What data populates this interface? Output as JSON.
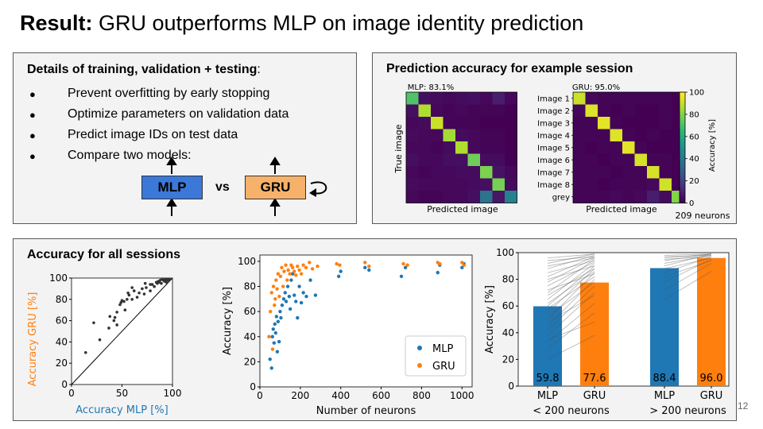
{
  "slide": {
    "title_bold": "Result:",
    "title_rest": " GRU outperforms MLP on image identity prediction",
    "page_number": "12"
  },
  "training": {
    "heading_bold": "Details of training, validation + testing",
    "heading_tail": ":",
    "bullet_glyph": "●",
    "bullets": [
      "Prevent overfitting by early stopping",
      "Optimize parameters on validation data",
      "Predict image IDs on test data",
      "Compare two models:"
    ],
    "model_a": "MLP",
    "vs": "vs",
    "model_b": "GRU"
  },
  "prediction": {
    "heading": "Prediction accuracy for example session",
    "neurons_note": "209 neurons",
    "colorbar_label": "Accuracy [%]",
    "colorbar_ticks": [
      "0",
      "20",
      "40",
      "60",
      "80",
      "100"
    ],
    "y_label": "True image",
    "x_label": "Predicted image",
    "row_labels": [
      "Image 1",
      "Image 2",
      "Image 3",
      "Image 4",
      "Image 5",
      "Image 6",
      "Image 7",
      "Image 8",
      "grey"
    ],
    "colors": {
      "low": "#440154",
      "mid": "#21918c",
      "high": "#fde725"
    }
  },
  "all_sessions": {
    "heading": "Accuracy for all sessions"
  },
  "chart_data": [
    {
      "type": "heatmap",
      "title": "MLP: 83.1%",
      "xlabel": "Predicted image",
      "ylabel": "True image",
      "rows": [
        "Image 1",
        "Image 2",
        "Image 3",
        "Image 4",
        "Image 5",
        "Image 6",
        "Image 7",
        "Image 8",
        "grey"
      ],
      "values": [
        [
          72,
          4,
          3,
          2,
          3,
          4,
          2,
          8,
          2
        ],
        [
          4,
          88,
          2,
          1,
          2,
          1,
          1,
          1,
          0
        ],
        [
          2,
          3,
          92,
          1,
          1,
          1,
          0,
          0,
          0
        ],
        [
          3,
          2,
          2,
          86,
          3,
          2,
          1,
          1,
          0
        ],
        [
          2,
          2,
          1,
          3,
          88,
          2,
          1,
          1,
          0
        ],
        [
          4,
          2,
          2,
          4,
          4,
          78,
          3,
          3,
          0
        ],
        [
          2,
          1,
          2,
          2,
          3,
          3,
          80,
          5,
          2
        ],
        [
          3,
          2,
          2,
          2,
          2,
          3,
          4,
          79,
          3
        ],
        [
          2,
          1,
          1,
          2,
          2,
          4,
          38,
          6,
          44
        ]
      ],
      "zlim": [
        0,
        100
      ]
    },
    {
      "type": "heatmap",
      "title": "GRU: 95.0%",
      "xlabel": "Predicted image",
      "rows": [
        "Image 1",
        "Image 2",
        "Image 3",
        "Image 4",
        "Image 5",
        "Image 6",
        "Image 7",
        "Image 8",
        "grey"
      ],
      "values": [
        [
          92,
          2,
          1,
          1,
          1,
          1,
          1,
          1,
          0
        ],
        [
          2,
          95,
          1,
          0,
          1,
          0,
          0,
          1,
          0
        ],
        [
          1,
          1,
          96,
          1,
          0,
          0,
          0,
          1,
          0
        ],
        [
          1,
          1,
          1,
          95,
          1,
          0,
          1,
          0,
          0
        ],
        [
          1,
          0,
          1,
          1,
          96,
          1,
          0,
          0,
          0
        ],
        [
          1,
          1,
          0,
          1,
          1,
          94,
          1,
          1,
          0
        ],
        [
          1,
          1,
          1,
          0,
          1,
          1,
          94,
          1,
          0
        ],
        [
          1,
          1,
          0,
          1,
          1,
          1,
          2,
          93,
          0
        ],
        [
          1,
          1,
          1,
          2,
          1,
          2,
          8,
          3,
          81
        ]
      ],
      "zlim": [
        0,
        100
      ]
    },
    {
      "type": "scatter",
      "xlabel": "Accuracy MLP [%]",
      "ylabel": "Accuracy GRU [%]",
      "xlim": [
        0,
        100
      ],
      "ylim": [
        0,
        100
      ],
      "xticks": [
        0,
        50,
        100
      ],
      "yticks": [
        0,
        20,
        40,
        60,
        80,
        100
      ],
      "colors": {
        "xlabel": "#1f77b4",
        "ylabel": "#ff7f0e",
        "points": "#333333"
      },
      "diagonal": true,
      "x": [
        14,
        22,
        28,
        37,
        38,
        42,
        43,
        45,
        45,
        48,
        49,
        50,
        52,
        53,
        55,
        56,
        57,
        60,
        60,
        62,
        65,
        67,
        70,
        72,
        73,
        74,
        78,
        78,
        80,
        82,
        84,
        85,
        86,
        87,
        88,
        89,
        90,
        91,
        92,
        93,
        94,
        94,
        95,
        96,
        97
      ],
      "y": [
        30,
        58,
        42,
        53,
        64,
        60,
        63,
        56,
        68,
        75,
        77,
        79,
        78,
        70,
        80,
        86,
        84,
        91,
        80,
        88,
        82,
        86,
        90,
        85,
        95,
        91,
        88,
        94,
        94,
        92,
        96,
        95,
        97,
        96,
        98,
        95,
        99,
        98,
        97,
        99,
        98,
        96,
        99,
        98,
        99
      ]
    },
    {
      "type": "scatter",
      "xlabel": "Number of neurons",
      "ylabel": "Accuracy [%]",
      "xlim": [
        0,
        1050
      ],
      "ylim": [
        0,
        105
      ],
      "xticks": [
        0,
        200,
        400,
        600,
        800,
        1000
      ],
      "yticks": [
        0,
        20,
        40,
        60,
        80,
        100
      ],
      "series": [
        {
          "name": "MLP",
          "color": "#1f77b4",
          "x": [
            50,
            58,
            62,
            66,
            70,
            74,
            78,
            82,
            86,
            90,
            95,
            100,
            104,
            110,
            118,
            125,
            130,
            138,
            145,
            150,
            155,
            162,
            170,
            178,
            186,
            195,
            205,
            215,
            230,
            250,
            275,
            390,
            400,
            520,
            540,
            700,
            720,
            880,
            890,
            1000,
            1010
          ],
          "y": [
            22,
            15,
            40,
            46,
            35,
            50,
            43,
            56,
            28,
            52,
            36,
            60,
            55,
            65,
            70,
            75,
            68,
            80,
            72,
            62,
            85,
            90,
            73,
            68,
            55,
            80,
            67,
            75,
            72,
            85,
            73,
            88,
            92,
            95,
            93,
            88,
            95,
            91,
            97,
            95,
            98
          ]
        },
        {
          "name": "GRU",
          "color": "#ff7f0e",
          "x": [
            45,
            52,
            58,
            63,
            67,
            72,
            76,
            80,
            85,
            90,
            96,
            102,
            108,
            115,
            120,
            128,
            135,
            140,
            148,
            155,
            162,
            170,
            178,
            186,
            195,
            205,
            215,
            228,
            245,
            260,
            285,
            380,
            395,
            520,
            540,
            710,
            730,
            880,
            890,
            1000,
            1010
          ],
          "y": [
            40,
            60,
            75,
            30,
            80,
            65,
            70,
            85,
            78,
            90,
            72,
            88,
            95,
            80,
            92,
            97,
            85,
            93,
            90,
            97,
            95,
            92,
            89,
            96,
            93,
            90,
            97,
            95,
            99,
            94,
            96,
            98,
            97,
            99,
            96,
            98,
            97,
            99,
            98,
            99,
            97
          ]
        }
      ],
      "legend": "bottom-right"
    },
    {
      "type": "bar",
      "ylabel": "Accuracy [%]",
      "ylim": [
        0,
        100
      ],
      "yticks": [
        0,
        20,
        40,
        60,
        80,
        100
      ],
      "categories": [
        "MLP",
        "GRU",
        "MLP",
        "GRU"
      ],
      "groups": [
        "< 200 neurons",
        "> 200 neurons"
      ],
      "values": [
        59.8,
        77.6,
        88.4,
        96.0
      ],
      "labels": [
        "59.8",
        "77.6",
        "88.4",
        "96.0"
      ],
      "colors": [
        "#1f77b4",
        "#ff7f0e",
        "#1f77b4",
        "#ff7f0e"
      ],
      "paired_lines_low": [
        [
          20,
          38
        ],
        [
          28,
          55
        ],
        [
          33,
          62
        ],
        [
          35,
          48
        ],
        [
          38,
          70
        ],
        [
          42,
          75
        ],
        [
          45,
          80
        ],
        [
          48,
          68
        ],
        [
          50,
          85
        ],
        [
          52,
          78
        ],
        [
          55,
          88
        ],
        [
          58,
          82
        ],
        [
          60,
          90
        ],
        [
          62,
          86
        ],
        [
          65,
          92
        ],
        [
          68,
          88
        ],
        [
          70,
          95
        ],
        [
          72,
          84
        ],
        [
          75,
          93
        ],
        [
          78,
          96
        ],
        [
          80,
          90
        ],
        [
          82,
          97
        ],
        [
          85,
          94
        ],
        [
          88,
          98
        ],
        [
          90,
          96
        ],
        [
          92,
          99
        ],
        [
          94,
          97
        ],
        [
          96,
          99
        ]
      ],
      "paired_lines_high": [
        [
          65,
          86
        ],
        [
          72,
          92
        ],
        [
          78,
          95
        ],
        [
          82,
          94
        ],
        [
          85,
          97
        ],
        [
          88,
          96
        ],
        [
          90,
          99
        ],
        [
          92,
          98
        ],
        [
          94,
          99
        ],
        [
          95,
          97
        ],
        [
          96,
          99
        ],
        [
          97,
          98
        ],
        [
          98,
          99
        ]
      ]
    }
  ]
}
